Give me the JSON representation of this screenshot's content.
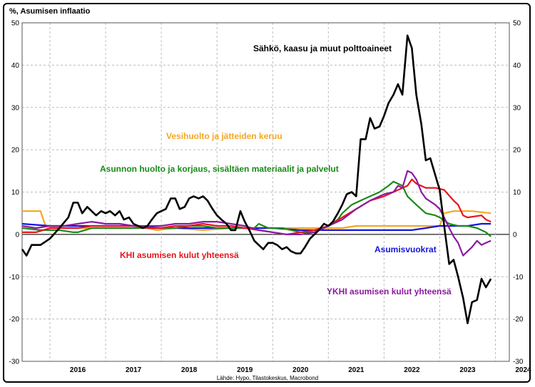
{
  "chart_data": {
    "type": "line",
    "ylabel": "%, Asumisen inflaatio",
    "source": "Lähde: Hypo, Tilastokeskus, Macrobond",
    "xlim": [
      2015.5,
      2024.25
    ],
    "ylim": [
      -30,
      50
    ],
    "yticks": [
      -30,
      -20,
      -10,
      0,
      10,
      20,
      30,
      40,
      50
    ],
    "xticks": [
      "2016",
      "2017",
      "2018",
      "2019",
      "2020",
      "2021",
      "2022",
      "2023",
      "2024"
    ],
    "grid": true,
    "colors": {
      "energy": "#000000",
      "water": "#f5a623",
      "maintenance": "#1a8a1a",
      "khi": "#e8141c",
      "rent": "#1414e0",
      "ykhi": "#8c1aa0"
    },
    "series": [
      {
        "key": "energy",
        "name": "Sähkö, kaasu ja muut polttoaineet",
        "points": [
          [
            2015.5,
            -3.5
          ],
          [
            2015.58,
            -5
          ],
          [
            2015.67,
            -2.5
          ],
          [
            2015.83,
            -2.5
          ],
          [
            2016.0,
            -1
          ],
          [
            2016.17,
            1.5
          ],
          [
            2016.33,
            4
          ],
          [
            2016.42,
            7.5
          ],
          [
            2016.5,
            7.5
          ],
          [
            2016.58,
            5
          ],
          [
            2016.67,
            6.5
          ],
          [
            2016.83,
            4.5
          ],
          [
            2016.92,
            5.5
          ],
          [
            2017.0,
            5
          ],
          [
            2017.08,
            5.5
          ],
          [
            2017.17,
            4.5
          ],
          [
            2017.25,
            5.5
          ],
          [
            2017.33,
            3.5
          ],
          [
            2017.42,
            4
          ],
          [
            2017.5,
            2.5
          ],
          [
            2017.67,
            1.5
          ],
          [
            2017.75,
            2
          ],
          [
            2017.83,
            3.5
          ],
          [
            2017.92,
            5
          ],
          [
            2018.0,
            5.5
          ],
          [
            2018.08,
            6
          ],
          [
            2018.17,
            8.5
          ],
          [
            2018.25,
            8.5
          ],
          [
            2018.33,
            6
          ],
          [
            2018.42,
            6.5
          ],
          [
            2018.5,
            8.5
          ],
          [
            2018.58,
            9
          ],
          [
            2018.67,
            8.5
          ],
          [
            2018.75,
            9
          ],
          [
            2018.83,
            8
          ],
          [
            2018.92,
            6
          ],
          [
            2019.0,
            4.5
          ],
          [
            2019.08,
            3.5
          ],
          [
            2019.17,
            2.5
          ],
          [
            2019.25,
            1
          ],
          [
            2019.33,
            1
          ],
          [
            2019.42,
            5.5
          ],
          [
            2019.5,
            3
          ],
          [
            2019.58,
            1
          ],
          [
            2019.67,
            -1.5
          ],
          [
            2019.75,
            -2.5
          ],
          [
            2019.83,
            -3.5
          ],
          [
            2019.92,
            -2
          ],
          [
            2020.0,
            -2
          ],
          [
            2020.08,
            -2.5
          ],
          [
            2020.17,
            -3.5
          ],
          [
            2020.25,
            -3
          ],
          [
            2020.33,
            -4
          ],
          [
            2020.42,
            -4.5
          ],
          [
            2020.5,
            -4.5
          ],
          [
            2020.58,
            -3
          ],
          [
            2020.67,
            -1
          ],
          [
            2020.75,
            0
          ],
          [
            2020.83,
            1
          ],
          [
            2020.92,
            2.5
          ],
          [
            2021.0,
            2
          ],
          [
            2021.08,
            3
          ],
          [
            2021.17,
            5
          ],
          [
            2021.25,
            7
          ],
          [
            2021.33,
            9.5
          ],
          [
            2021.42,
            10
          ],
          [
            2021.5,
            9
          ],
          [
            2021.58,
            22.5
          ],
          [
            2021.67,
            22.5
          ],
          [
            2021.75,
            27.5
          ],
          [
            2021.83,
            25
          ],
          [
            2021.92,
            25.5
          ],
          [
            2022.0,
            28
          ],
          [
            2022.08,
            31
          ],
          [
            2022.17,
            33
          ],
          [
            2022.25,
            35.5
          ],
          [
            2022.33,
            33
          ],
          [
            2022.42,
            47
          ],
          [
            2022.5,
            44
          ],
          [
            2022.58,
            33
          ],
          [
            2022.67,
            26
          ],
          [
            2022.75,
            17.5
          ],
          [
            2022.83,
            18
          ],
          [
            2022.92,
            14
          ],
          [
            2023.0,
            10.5
          ],
          [
            2023.08,
            2
          ],
          [
            2023.17,
            -7
          ],
          [
            2023.25,
            -6
          ],
          [
            2023.33,
            -10
          ],
          [
            2023.42,
            -15
          ],
          [
            2023.5,
            -21
          ],
          [
            2023.58,
            -16
          ],
          [
            2023.67,
            -15.5
          ],
          [
            2023.75,
            -10.5
          ],
          [
            2023.83,
            -12.5
          ],
          [
            2023.92,
            -10.5
          ]
        ]
      },
      {
        "key": "water",
        "name": "Vesihuolto ja jätteiden keruu",
        "points": [
          [
            2015.5,
            5.5
          ],
          [
            2015.83,
            5.5
          ],
          [
            2015.92,
            2
          ],
          [
            2016.25,
            1.5
          ],
          [
            2016.75,
            1.5
          ],
          [
            2017.25,
            1.5
          ],
          [
            2017.75,
            1.5
          ],
          [
            2017.92,
            1
          ],
          [
            2018.25,
            1.5
          ],
          [
            2018.75,
            1
          ],
          [
            2019.25,
            1.5
          ],
          [
            2019.67,
            1.5
          ],
          [
            2020.0,
            1.5
          ],
          [
            2020.5,
            1.5
          ],
          [
            2020.92,
            1.5
          ],
          [
            2021.25,
            1.5
          ],
          [
            2021.5,
            2
          ],
          [
            2021.92,
            2
          ],
          [
            2022.5,
            2
          ],
          [
            2022.92,
            2
          ],
          [
            2023.0,
            2
          ],
          [
            2023.08,
            5
          ],
          [
            2023.25,
            5.5
          ],
          [
            2023.58,
            5.5
          ],
          [
            2023.92,
            5
          ]
        ]
      },
      {
        "key": "maintenance",
        "name": "Asunnon huolto ja korjaus, sisältäen materiaalit ja palvelut",
        "points": [
          [
            2015.5,
            1.5
          ],
          [
            2015.83,
            1
          ],
          [
            2016.17,
            1
          ],
          [
            2016.42,
            0.5
          ],
          [
            2016.5,
            0.5
          ],
          [
            2016.75,
            1.5
          ],
          [
            2017.0,
            1.5
          ],
          [
            2017.5,
            1.5
          ],
          [
            2017.75,
            1.5
          ],
          [
            2018.0,
            1.5
          ],
          [
            2018.25,
            1.5
          ],
          [
            2018.5,
            2
          ],
          [
            2018.75,
            2
          ],
          [
            2019.0,
            1.5
          ],
          [
            2019.25,
            1.5
          ],
          [
            2019.5,
            1.5
          ],
          [
            2019.67,
            1.5
          ],
          [
            2019.75,
            2.5
          ],
          [
            2019.92,
            1.5
          ],
          [
            2020.17,
            1.5
          ],
          [
            2020.33,
            1
          ],
          [
            2020.5,
            0.5
          ],
          [
            2020.75,
            0.5
          ],
          [
            2020.92,
            1.5
          ],
          [
            2021.0,
            2
          ],
          [
            2021.17,
            3.5
          ],
          [
            2021.25,
            5
          ],
          [
            2021.42,
            7
          ],
          [
            2021.58,
            8
          ],
          [
            2021.75,
            9
          ],
          [
            2021.92,
            10
          ],
          [
            2022.08,
            11.5
          ],
          [
            2022.17,
            12.5
          ],
          [
            2022.33,
            11.5
          ],
          [
            2022.42,
            9
          ],
          [
            2022.58,
            7
          ],
          [
            2022.75,
            5
          ],
          [
            2022.92,
            4.5
          ],
          [
            2023.0,
            4
          ],
          [
            2023.17,
            2.5
          ],
          [
            2023.33,
            2
          ],
          [
            2023.5,
            2
          ],
          [
            2023.67,
            1.5
          ],
          [
            2023.83,
            0.5
          ],
          [
            2023.92,
            -0.5
          ]
        ]
      },
      {
        "key": "khi",
        "name": "KHI asumisen kulut yhteensä",
        "points": [
          [
            2015.5,
            0.5
          ],
          [
            2015.75,
            0.5
          ],
          [
            2016.0,
            1.5
          ],
          [
            2016.25,
            1.5
          ],
          [
            2016.5,
            1.5
          ],
          [
            2016.75,
            2
          ],
          [
            2017.0,
            2
          ],
          [
            2017.25,
            2
          ],
          [
            2017.5,
            2
          ],
          [
            2017.75,
            1.5
          ],
          [
            2018.0,
            1.5
          ],
          [
            2018.25,
            2
          ],
          [
            2018.5,
            2
          ],
          [
            2018.75,
            2.5
          ],
          [
            2019.0,
            2
          ],
          [
            2019.25,
            2
          ],
          [
            2019.5,
            1.5
          ],
          [
            2019.75,
            1
          ],
          [
            2020.0,
            0.5
          ],
          [
            2020.25,
            0
          ],
          [
            2020.5,
            0.5
          ],
          [
            2020.75,
            1
          ],
          [
            2021.0,
            2
          ],
          [
            2021.25,
            4
          ],
          [
            2021.5,
            6
          ],
          [
            2021.75,
            8
          ],
          [
            2022.0,
            9
          ],
          [
            2022.25,
            10.5
          ],
          [
            2022.42,
            11.5
          ],
          [
            2022.5,
            13
          ],
          [
            2022.58,
            12
          ],
          [
            2022.75,
            11
          ],
          [
            2022.92,
            11
          ],
          [
            2023.08,
            10.5
          ],
          [
            2023.25,
            8
          ],
          [
            2023.33,
            7
          ],
          [
            2023.42,
            4.5
          ],
          [
            2023.5,
            4
          ],
          [
            2023.75,
            4.5
          ],
          [
            2023.83,
            3.5
          ],
          [
            2023.92,
            3
          ]
        ]
      },
      {
        "key": "rent",
        "name": "Asumisvuokrat",
        "points": [
          [
            2015.5,
            2.5
          ],
          [
            2016.0,
            2
          ],
          [
            2016.5,
            2
          ],
          [
            2017.0,
            2
          ],
          [
            2017.5,
            2
          ],
          [
            2018.0,
            1.5
          ],
          [
            2018.5,
            1.5
          ],
          [
            2019.0,
            1.5
          ],
          [
            2019.5,
            1.5
          ],
          [
            2020.0,
            1.5
          ],
          [
            2020.5,
            1
          ],
          [
            2021.0,
            1
          ],
          [
            2021.5,
            1
          ],
          [
            2022.0,
            1
          ],
          [
            2022.5,
            1
          ],
          [
            2022.75,
            1.5
          ],
          [
            2023.0,
            2
          ],
          [
            2023.25,
            2
          ],
          [
            2023.5,
            2
          ],
          [
            2023.75,
            2.5
          ],
          [
            2023.92,
            2.5
          ]
        ]
      },
      {
        "key": "ykhi",
        "name": "YKHI asumisen kulut yhteensä",
        "points": [
          [
            2015.5,
            2
          ],
          [
            2015.75,
            1.5
          ],
          [
            2016.0,
            2
          ],
          [
            2016.25,
            2
          ],
          [
            2016.5,
            2.5
          ],
          [
            2016.75,
            3
          ],
          [
            2017.0,
            2.5
          ],
          [
            2017.25,
            2.5
          ],
          [
            2017.5,
            2
          ],
          [
            2017.75,
            2
          ],
          [
            2018.0,
            2
          ],
          [
            2018.25,
            2.5
          ],
          [
            2018.5,
            2.5
          ],
          [
            2018.75,
            3
          ],
          [
            2019.0,
            3
          ],
          [
            2019.25,
            2.5
          ],
          [
            2019.5,
            2
          ],
          [
            2019.75,
            1
          ],
          [
            2020.0,
            0.5
          ],
          [
            2020.25,
            0
          ],
          [
            2020.5,
            0
          ],
          [
            2020.75,
            0.5
          ],
          [
            2021.0,
            2
          ],
          [
            2021.25,
            3.5
          ],
          [
            2021.5,
            6
          ],
          [
            2021.75,
            8
          ],
          [
            2022.0,
            9.5
          ],
          [
            2022.17,
            10
          ],
          [
            2022.25,
            11.5
          ],
          [
            2022.33,
            11
          ],
          [
            2022.42,
            15
          ],
          [
            2022.5,
            14.5
          ],
          [
            2022.58,
            13
          ],
          [
            2022.67,
            10
          ],
          [
            2022.75,
            8.5
          ],
          [
            2022.92,
            7
          ],
          [
            2023.0,
            6
          ],
          [
            2023.08,
            4
          ],
          [
            2023.17,
            1.5
          ],
          [
            2023.25,
            -0.5
          ],
          [
            2023.33,
            -2
          ],
          [
            2023.42,
            -5
          ],
          [
            2023.5,
            -4
          ],
          [
            2023.58,
            -3
          ],
          [
            2023.67,
            -1.5
          ],
          [
            2023.75,
            -2.5
          ],
          [
            2023.83,
            -2
          ],
          [
            2023.92,
            -1.5
          ]
        ]
      }
    ],
    "annotations": [
      {
        "series": "energy",
        "text": "Sähkö, kaasu ja muut polttoaineet"
      },
      {
        "series": "water",
        "text": "Vesihuolto ja jätteiden keruu"
      },
      {
        "series": "maintenance",
        "text": "Asunnon huolto ja korjaus, sisältäen materiaalit ja palvelut"
      },
      {
        "series": "khi",
        "text": "KHI asumisen kulut yhteensä"
      },
      {
        "series": "rent",
        "text": "Asumisvuokrat"
      },
      {
        "series": "ykhi",
        "text": "YKHI asumisen kulut yhteensä"
      }
    ]
  }
}
